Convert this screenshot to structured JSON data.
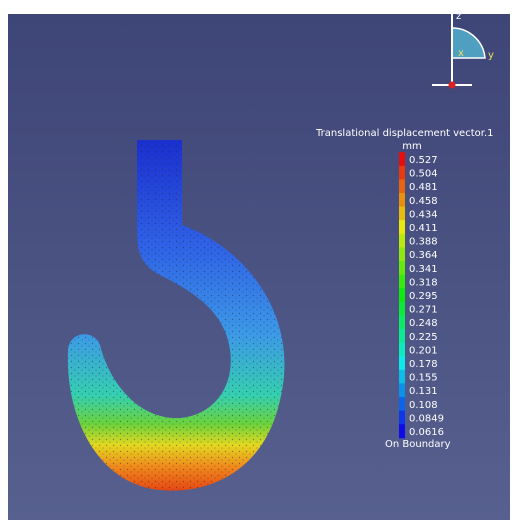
{
  "legend": {
    "title": "Translational displacement vector.1",
    "unit": "mm",
    "values": [
      0.527,
      0.504,
      0.481,
      0.458,
      0.434,
      0.411,
      0.388,
      0.364,
      0.341,
      0.318,
      0.295,
      0.271,
      0.248,
      0.225,
      0.201,
      0.178,
      0.155,
      0.131,
      0.108,
      0.0849,
      0.0616
    ],
    "footer": "On Boundary"
  },
  "axes": {
    "z": "z",
    "x": "x",
    "y": "y"
  }
}
